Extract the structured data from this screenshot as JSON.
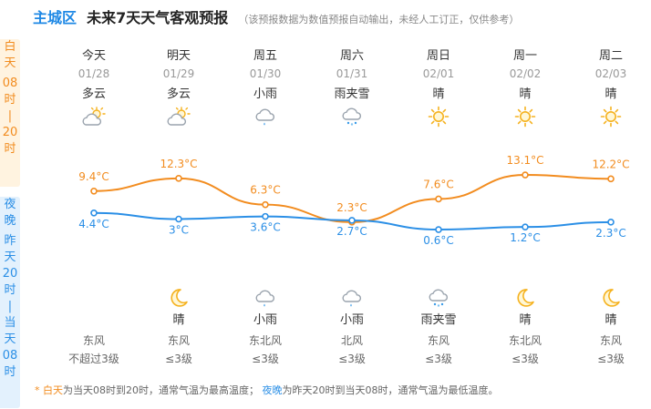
{
  "header": {
    "district": "主城区",
    "title": "未来7天天气客观预报",
    "note": "（该预报数据为数值预报自动输出，未经人工订正，仅供参考）"
  },
  "side": {
    "day": [
      "白",
      "天",
      "08",
      "时",
      "|",
      "20",
      "时"
    ],
    "night": [
      "夜",
      "晚",
      "昨",
      "天",
      "20",
      "时",
      "|",
      "当",
      "天",
      "08",
      "时"
    ]
  },
  "days": [
    {
      "name": "今天",
      "date": "01/28",
      "day_weather": "多云",
      "day_icon": "partly-cloudy-icon",
      "night_icon": "",
      "night_weather": "",
      "wind_dir": "东风",
      "wind_level": "不超过3级"
    },
    {
      "name": "明天",
      "date": "01/29",
      "day_weather": "多云",
      "day_icon": "partly-cloudy-icon",
      "night_icon": "moon-icon",
      "night_weather": "晴",
      "wind_dir": "东风",
      "wind_level": "≤3级"
    },
    {
      "name": "周五",
      "date": "01/30",
      "day_weather": "小雨",
      "day_icon": "light-rain-icon",
      "night_icon": "light-rain-icon",
      "night_weather": "小雨",
      "wind_dir": "东北风",
      "wind_level": "≤3级"
    },
    {
      "name": "周六",
      "date": "01/31",
      "day_weather": "雨夹雪",
      "day_icon": "sleet-icon",
      "night_icon": "light-rain-icon",
      "night_weather": "小雨",
      "wind_dir": "北风",
      "wind_level": "≤3级"
    },
    {
      "name": "周日",
      "date": "02/01",
      "day_weather": "晴",
      "day_icon": "sun-icon",
      "night_icon": "sleet-icon",
      "night_weather": "雨夹雪",
      "wind_dir": "东风",
      "wind_level": "≤3级"
    },
    {
      "name": "周一",
      "date": "02/02",
      "day_weather": "晴",
      "day_icon": "sun-icon",
      "night_icon": "moon-icon",
      "night_weather": "晴",
      "wind_dir": "东北风",
      "wind_level": "≤3级"
    },
    {
      "name": "周二",
      "date": "02/03",
      "day_weather": "晴",
      "day_icon": "sun-icon",
      "night_icon": "moon-icon",
      "night_weather": "晴",
      "wind_dir": "东风",
      "wind_level": "≤3级"
    }
  ],
  "chart_data": {
    "type": "line",
    "categories": [
      "01/28",
      "01/29",
      "01/30",
      "01/31",
      "02/01",
      "02/02",
      "02/03"
    ],
    "series": [
      {
        "values": [
          9.4,
          12.3,
          6.3,
          2.3,
          7.6,
          13.1,
          12.2
        ],
        "labels": [
          "9.4°C",
          "12.3°C",
          "6.3°C",
          "2.3°C",
          "7.6°C",
          "13.1°C",
          "12.2°C"
        ],
        "color": "#f28c1f"
      },
      {
        "values": [
          4.4,
          3,
          3.6,
          2.7,
          0.6,
          1.2,
          2.3
        ],
        "labels": [
          "4.4°C",
          "3°C",
          "3.6°C",
          "2.7°C",
          "0.6°C",
          "1.2°C",
          "2.3°C"
        ],
        "color": "#2b8fe6"
      }
    ]
  },
  "footer": {
    "star": "* ",
    "day_word": "白天",
    "day_text": "为当天08时到20时，通常气温为最高温度；",
    "night_word": "夜晚",
    "night_text": "为昨天20时到当天08时，通常气温为最低温度。"
  },
  "colors": {
    "day": "#f28c1f",
    "night": "#2b8fe6",
    "brand": "#1e88e5"
  }
}
